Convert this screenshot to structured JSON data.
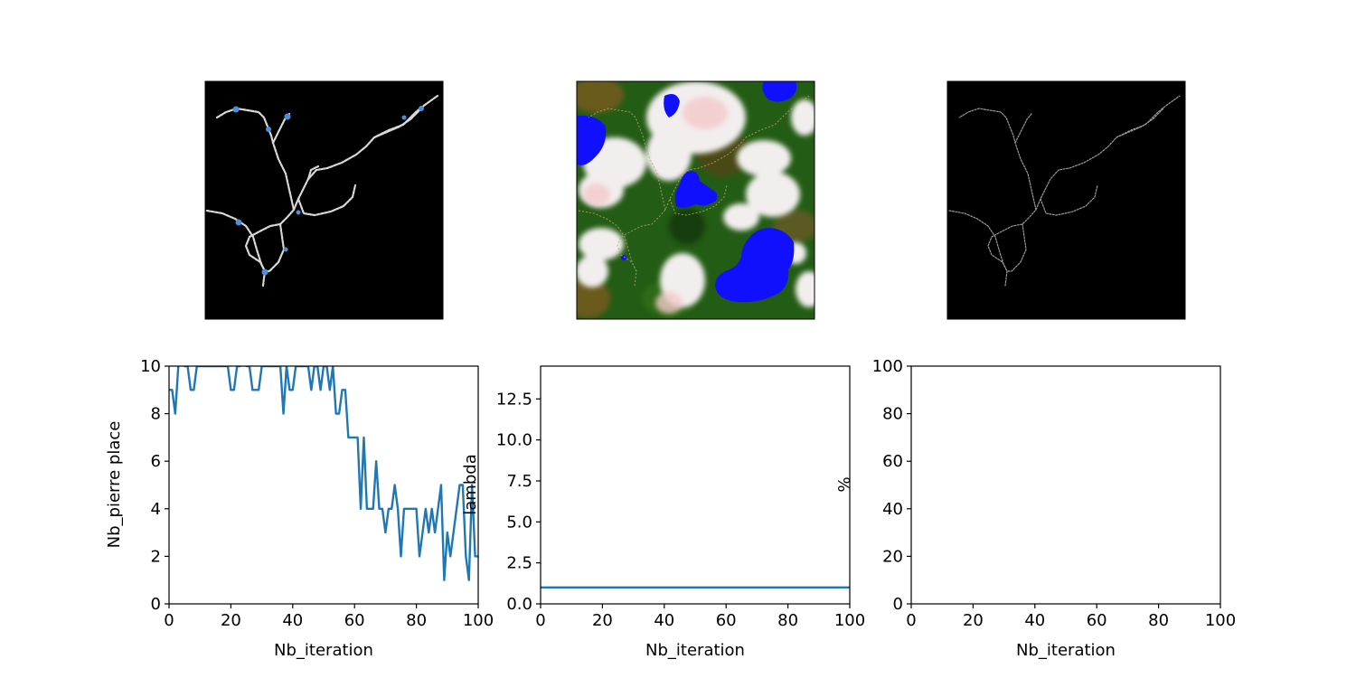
{
  "images": [
    {
      "name": "river-network-with-stones",
      "description_colors": {
        "background": "#000000",
        "path": "#d9d9d9",
        "stones": "#4a90d9"
      }
    },
    {
      "name": "terrain-map",
      "description_colors": {
        "forest": "#1f5a12",
        "snow": "#f4f0f0",
        "water": "#1010ff",
        "soil": "#6b5a1a"
      }
    },
    {
      "name": "river-network-skeleton",
      "description_colors": {
        "background": "#000000",
        "path": "#a0a0a0"
      }
    }
  ],
  "chart_data": [
    {
      "type": "line",
      "xlabel": "Nb_iteration",
      "ylabel": "Nb_pierre place",
      "xlim": [
        0,
        100
      ],
      "ylim": [
        0,
        10
      ],
      "xticks": [
        "0",
        "20",
        "40",
        "60",
        "80",
        "100"
      ],
      "yticks": [
        "0",
        "2",
        "4",
        "6",
        "8",
        "10"
      ],
      "line_color": "#1f77b4",
      "series": [
        {
          "x": [
            0,
            1,
            2,
            3,
            4,
            5,
            6,
            7,
            8,
            9,
            10,
            11,
            12,
            13,
            14,
            15,
            16,
            17,
            18,
            19,
            20,
            21,
            22,
            23,
            24,
            25,
            26,
            27,
            28,
            29,
            30,
            31,
            32,
            33,
            34,
            35,
            36,
            37,
            38,
            39,
            40,
            41,
            42,
            43,
            44,
            45,
            46,
            47,
            48,
            49,
            50,
            51,
            52,
            53,
            54,
            55,
            56,
            57,
            58,
            59,
            60,
            61,
            62,
            63,
            64,
            65,
            66,
            67,
            68,
            69,
            70,
            71,
            72,
            73,
            74,
            75,
            76,
            77,
            78,
            79,
            80,
            81,
            82,
            83,
            84,
            85,
            86,
            87,
            88,
            89,
            90,
            91,
            92,
            93,
            94,
            95,
            96,
            97,
            98,
            99,
            100
          ],
          "values": [
            9,
            9,
            8,
            10,
            11,
            10,
            10,
            9,
            9,
            10,
            10,
            10,
            10,
            10,
            10,
            10,
            10,
            10,
            10,
            10,
            9,
            9,
            10,
            10,
            11,
            10,
            10,
            9,
            9,
            9,
            10,
            10,
            10,
            10,
            10,
            10,
            10,
            8,
            10,
            9,
            9,
            10,
            10,
            10,
            10,
            10,
            9,
            10,
            10,
            9,
            10,
            10,
            9,
            10,
            8,
            8,
            9,
            9,
            7,
            7,
            7,
            7,
            4,
            7,
            4,
            4,
            4,
            6,
            4,
            4,
            3,
            4,
            4,
            5,
            4,
            2,
            4,
            4,
            4,
            4,
            4,
            2,
            3,
            4,
            3,
            4,
            3,
            4,
            5,
            1,
            3,
            2,
            3,
            4,
            5,
            5,
            2,
            1,
            5,
            2,
            2
          ]
        }
      ]
    },
    {
      "type": "line",
      "xlabel": "Nb_iteration",
      "ylabel": "lambda",
      "xlim": [
        0,
        100
      ],
      "ylim": [
        0,
        14.5
      ],
      "xticks": [
        "0",
        "20",
        "40",
        "60",
        "80",
        "100"
      ],
      "yticks": [
        "0.0",
        "2.5",
        "5.0",
        "7.5",
        "10.0",
        "12.5"
      ],
      "line_color": "#1f77b4",
      "series": [
        {
          "x": [
            0,
            100
          ],
          "values": [
            1,
            1
          ]
        }
      ]
    },
    {
      "type": "line",
      "xlabel": "Nb_iteration",
      "ylabel": "%",
      "xlim": [
        0,
        100
      ],
      "ylim": [
        0,
        100
      ],
      "xticks": [
        "0",
        "20",
        "40",
        "60",
        "80",
        "100"
      ],
      "yticks": [
        "0",
        "20",
        "40",
        "60",
        "80",
        "100"
      ],
      "line_color": "#1f77b4",
      "series": []
    }
  ]
}
